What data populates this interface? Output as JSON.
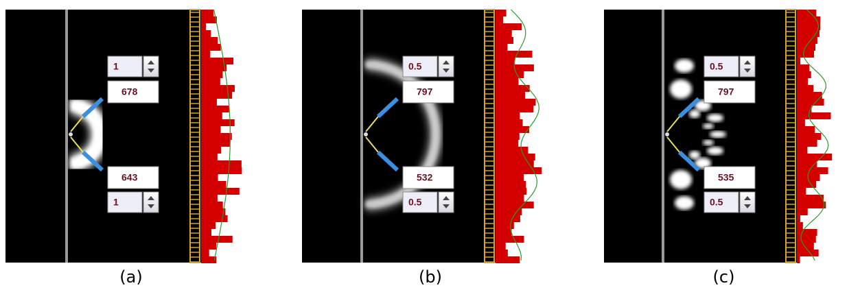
{
  "panels": [
    {
      "top_spin": 1,
      "top_count": 678,
      "bottom_count": 643,
      "bottom_spin": 1,
      "caption": "(a)"
    },
    {
      "top_spin": 0.5,
      "top_count": 797,
      "bottom_count": 532,
      "bottom_spin": 0.5,
      "caption": "(b)"
    },
    {
      "top_spin": 0.5,
      "top_count": 797,
      "bottom_count": 535,
      "bottom_spin": 0.5,
      "caption": "(c)"
    }
  ]
}
